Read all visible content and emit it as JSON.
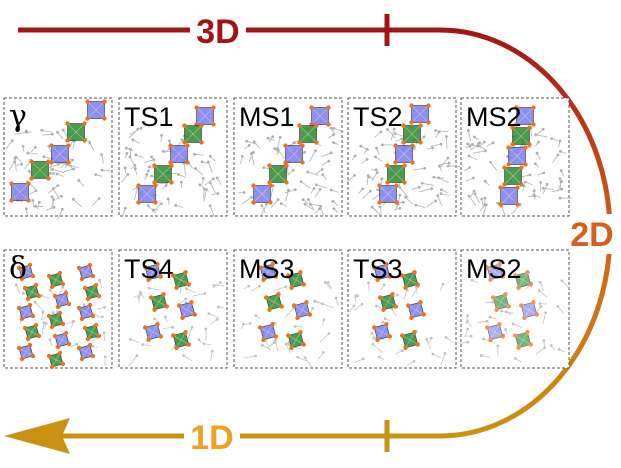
{
  "arrow": {
    "label_top": "3D",
    "label_right": "2D",
    "label_bottom": "1D",
    "colors": {
      "top": "#A31514",
      "mid": "#D35F1C",
      "bottom": "#C99212"
    },
    "label_colors": {
      "top": "#A31514",
      "right": "#D4601C",
      "bottom": "#F2A01E"
    }
  },
  "rows": [
    {
      "panels": [
        {
          "label": "γ",
          "pattern": "ribbon-zigzag"
        },
        {
          "label": "TS1",
          "pattern": "ribbon-tilt"
        },
        {
          "label": "MS1",
          "pattern": "ribbon-tilt"
        },
        {
          "label": "TS2",
          "pattern": "ribbon-steep"
        },
        {
          "label": "MS2",
          "pattern": "ribbon-vertical"
        }
      ]
    },
    {
      "panels": [
        {
          "label": "δ",
          "pattern": "chains-dense"
        },
        {
          "label": "TS4",
          "pattern": "chains-sparse"
        },
        {
          "label": "MS3",
          "pattern": "chains-sparse"
        },
        {
          "label": "TS3",
          "pattern": "chains-sparse"
        },
        {
          "label": "MS2",
          "pattern": "chains-faded"
        }
      ]
    }
  ],
  "octahedron_colors": {
    "blue": "#7B7BEA",
    "green": "#2E8B2E",
    "vertex": "#E8741E",
    "bond": "#A8A8A8"
  }
}
